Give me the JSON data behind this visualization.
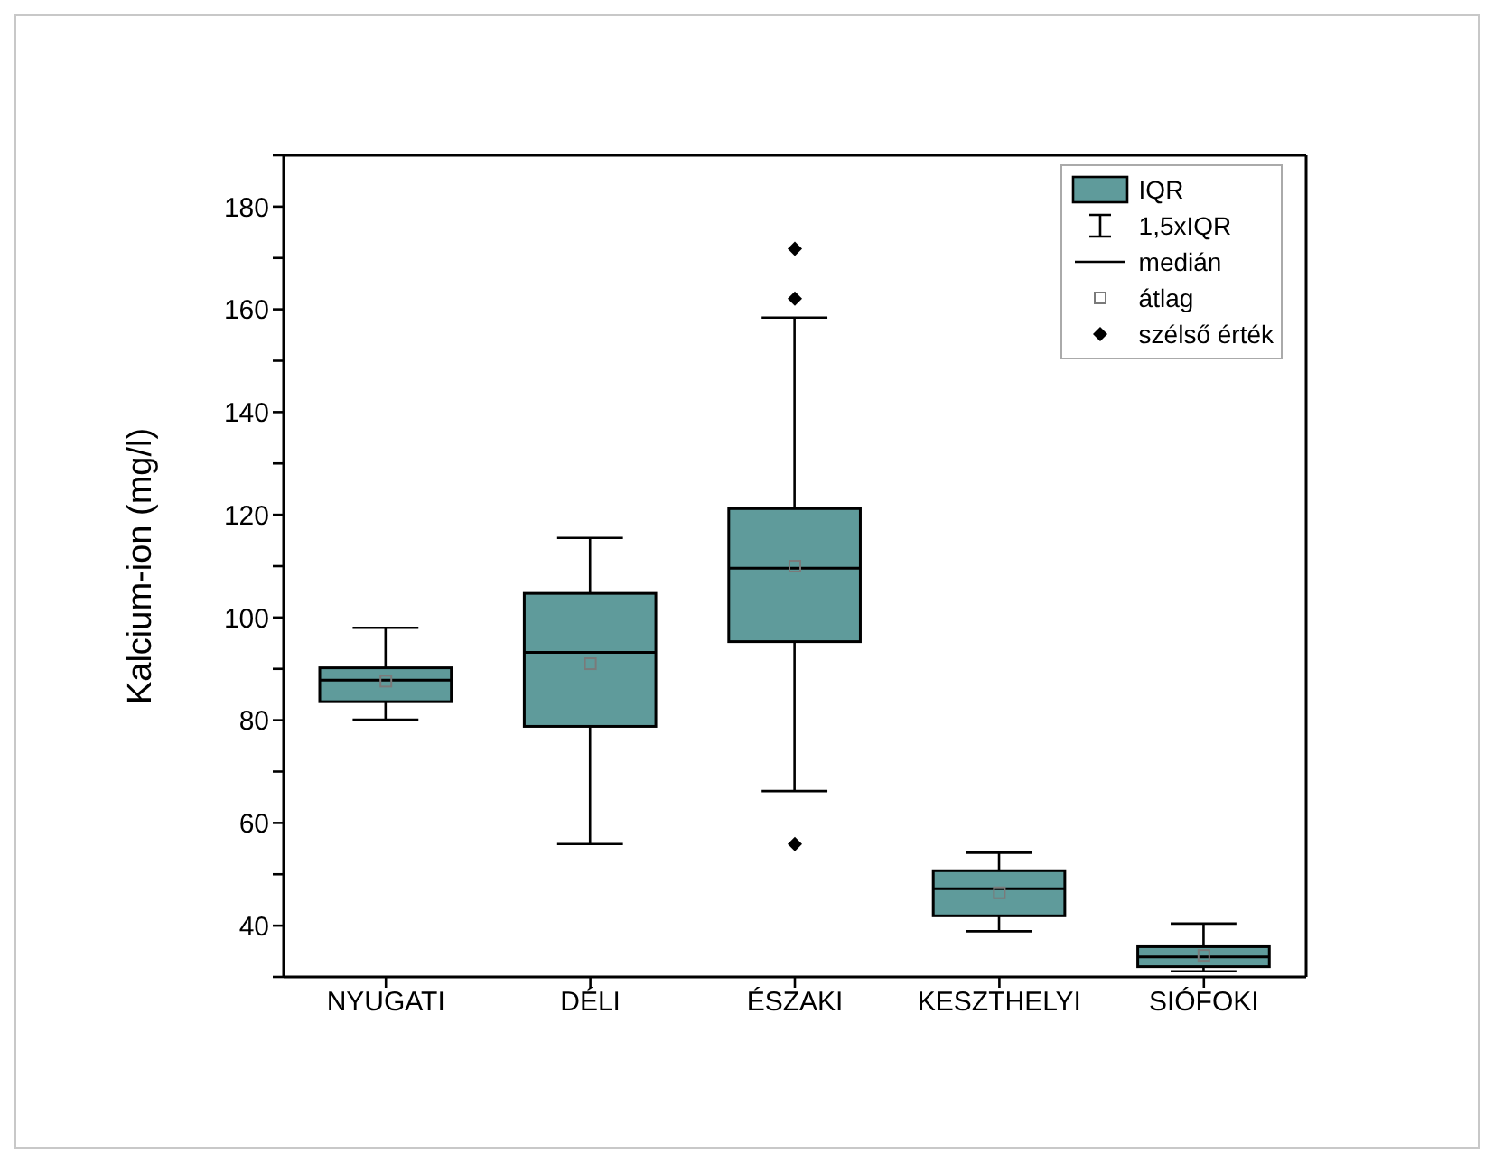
{
  "chart_data": {
    "type": "box",
    "ylabel": "Kalcium-ion (mg/l)",
    "categories": [
      "NYUGATI",
      "DÉLI",
      "ÉSZAKI",
      "KESZTHELYI",
      "SIÓFOKI"
    ],
    "ylim": [
      30,
      190
    ],
    "yticks": [
      {
        "value": 30,
        "label": null
      },
      40,
      {
        "value": 50,
        "label": null
      },
      60,
      {
        "value": 70,
        "label": null
      },
      80,
      {
        "value": 90,
        "label": null
      },
      100,
      {
        "value": 110,
        "label": null
      },
      120,
      {
        "value": 130,
        "label": null
      },
      140,
      {
        "value": 150,
        "label": null
      },
      160,
      {
        "value": 170,
        "label": null
      },
      180,
      {
        "value": 190,
        "label": null
      }
    ],
    "series": [
      {
        "name": "IQR",
        "color": "#5f9b9b",
        "boxes": [
          {
            "low": 80.1,
            "q1": 83.6,
            "median": 87.8,
            "q3": 90.2,
            "high": 98
          },
          {
            "low": 55.9,
            "q1": 78.8,
            "median": 93.2,
            "q3": 104.7,
            "high": 115.5
          },
          {
            "low": 66.2,
            "q1": 95.3,
            "median": 109.6,
            "q3": 121.2,
            "high": 158.4
          },
          {
            "low": 38.9,
            "q1": 41.9,
            "median": 47.2,
            "q3": 50.7,
            "high": 54.2
          },
          {
            "low": 31.1,
            "q1": 32,
            "median": 33.9,
            "q3": 35.9,
            "high": 40.4
          }
        ]
      },
      {
        "name": "átlag",
        "type": "scatter",
        "color": "#7a7a7a",
        "marker": "square",
        "x": [
          "NYUGATI",
          "DÉLI",
          "ÉSZAKI",
          "KESZTHELYI",
          "SIÓFOKI"
        ],
        "values": [
          87.6,
          91,
          110,
          46.4,
          34.2
        ]
      },
      {
        "name": "szélső érték",
        "type": "scatter",
        "color": "#000000",
        "marker": "diamond",
        "x": [
          "ÉSZAKI",
          "ÉSZAKI",
          "ÉSZAKI"
        ],
        "values": [
          171.8,
          162.1,
          55.9
        ]
      }
    ],
    "annotations": [
      "1,5xIQR",
      "medián"
    ],
    "legend": "top right"
  }
}
